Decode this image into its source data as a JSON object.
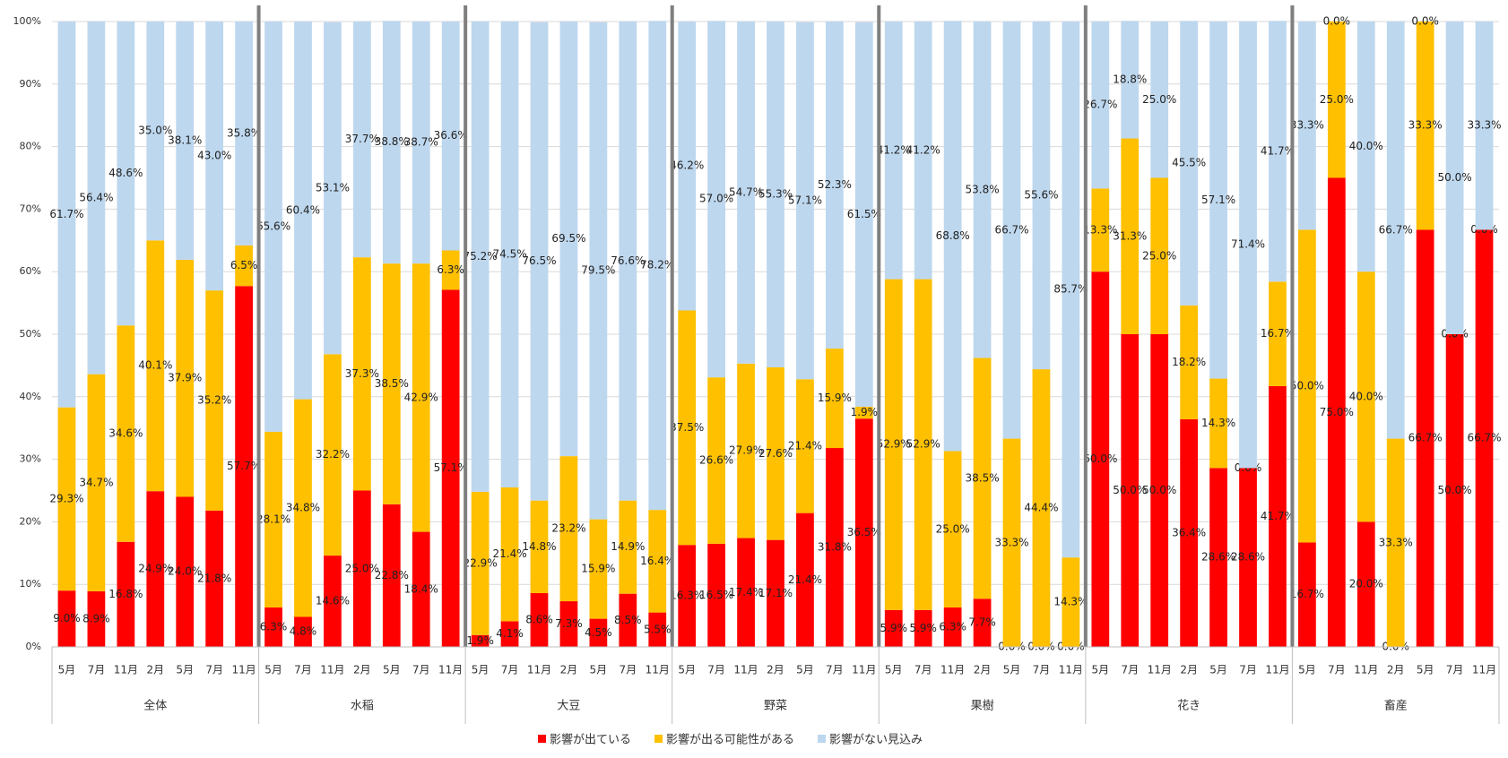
{
  "chart_data": {
    "type": "stacked_bar",
    "groups": [
      "全体",
      "水稲",
      "大豆",
      "野菜",
      "果樹",
      "花き",
      "畜産"
    ],
    "categories": [
      "5月",
      "7月",
      "11月",
      "2月",
      "5月",
      "7月",
      "11月",
      "5月",
      "7月",
      "11月",
      "2月",
      "5月",
      "7月",
      "11月",
      "5月",
      "7月",
      "11月",
      "2月",
      "5月",
      "7月",
      "11月",
      "5月",
      "7月",
      "11月",
      "2月",
      "5月",
      "7月",
      "11月",
      "5月",
      "7月",
      "11月",
      "2月",
      "5月",
      "7月",
      "11月",
      "5月",
      "7月",
      "11月",
      "2月",
      "5月",
      "7月",
      "11月",
      "5月",
      "7月",
      "11月",
      "2月",
      "5月",
      "7月",
      "11月"
    ],
    "ylim": [
      0,
      100
    ],
    "yticks": [
      {
        "value": 0,
        "label": "0%"
      },
      {
        "value": 10,
        "label": "10%"
      },
      {
        "value": 20,
        "label": "20%"
      },
      {
        "value": 30,
        "label": "30%"
      },
      {
        "value": 40,
        "label": "40%"
      },
      {
        "value": 50,
        "label": "50%"
      },
      {
        "value": 60,
        "label": "60%"
      },
      {
        "value": 70,
        "label": "70%"
      },
      {
        "value": 80,
        "label": "80%"
      },
      {
        "value": 90,
        "label": "90%"
      },
      {
        "value": 100,
        "label": "100%"
      }
    ],
    "grid": true,
    "legend": "bottom",
    "series": [
      {
        "name": "影響が出ている",
        "color": "#ff0000",
        "values": [
          9.0,
          8.9,
          16.8,
          24.9,
          24.0,
          21.8,
          57.7,
          6.3,
          4.8,
          14.6,
          25.0,
          22.8,
          18.4,
          57.1,
          1.9,
          4.1,
          8.6,
          7.3,
          4.5,
          8.5,
          5.5,
          16.3,
          16.5,
          17.4,
          17.1,
          21.4,
          31.8,
          36.5,
          5.9,
          5.9,
          6.3,
          7.7,
          0.0,
          0.0,
          0.0,
          60.0,
          50.0,
          50.0,
          36.4,
          28.6,
          28.6,
          41.7,
          16.7,
          75.0,
          20.0,
          0.0,
          66.7,
          50.0,
          66.7
        ],
        "value_labels": [
          "9.0%",
          "8.9%",
          "16.8%",
          "24.9%",
          "24.0%",
          "21.8%",
          "57.7%",
          "6.3%",
          "4.8%",
          "14.6%",
          "25.0%",
          "22.8%",
          "18.4%",
          "57.1%",
          "1.9%",
          "4.1%",
          "8.6%",
          "7.3%",
          "4.5%",
          "8.5%",
          "5.5%",
          "16.3%",
          "16.5%",
          "17.4%",
          "17.1%",
          "21.4%",
          "31.8%",
          "36.5%",
          "5.9%",
          "5.9%",
          "6.3%",
          "7.7%",
          "0.0%",
          "0.0%",
          "0.0%",
          "60.0%",
          "50.0%",
          "50.0%",
          "36.4%",
          "28.6%",
          "28.6%",
          "41.7%",
          "16.7%",
          "75.0%",
          "20.0%",
          "0.0%",
          "66.7%",
          "50.0%",
          "66.7%"
        ]
      },
      {
        "name": "影響が出る可能性がある",
        "color": "#ffc000",
        "values": [
          29.3,
          34.7,
          34.6,
          40.1,
          37.9,
          35.2,
          6.5,
          28.1,
          34.8,
          32.2,
          37.3,
          38.5,
          42.9,
          6.3,
          22.9,
          21.4,
          14.8,
          23.2,
          15.9,
          14.9,
          16.4,
          37.5,
          26.6,
          27.9,
          27.6,
          21.4,
          15.9,
          1.9,
          52.9,
          52.9,
          25.0,
          38.5,
          33.3,
          44.4,
          14.3,
          13.3,
          31.3,
          25.0,
          18.2,
          14.3,
          0.0,
          16.7,
          50.0,
          25.0,
          40.0,
          33.3,
          33.3,
          0.0,
          0.0
        ],
        "value_labels": [
          "29.3%",
          "34.7%",
          "34.6%",
          "40.1%",
          "37.9%",
          "35.2%",
          "6.5%",
          "28.1%",
          "34.8%",
          "32.2%",
          "37.3%",
          "38.5%",
          "42.9%",
          "6.3%",
          "22.9%",
          "21.4%",
          "14.8%",
          "23.2%",
          "15.9%",
          "14.9%",
          "16.4%",
          "37.5%",
          "26.6%",
          "27.9%",
          "27.6%",
          "21.4%",
          "15.9%",
          "1.9%",
          "52.9%",
          "52.9%",
          "25.0%",
          "38.5%",
          "33.3%",
          "44.4%",
          "14.3%",
          "13.3%",
          "31.3%",
          "25.0%",
          "18.2%",
          "14.3%",
          "0.0%",
          "16.7%",
          "50.0%",
          "25.0%",
          "40.0%",
          "33.3%",
          "33.3%",
          "0.0%",
          "0.0%"
        ]
      },
      {
        "name": "影響がない見込み",
        "color": "#bdd7ee",
        "values": [
          61.7,
          56.4,
          48.6,
          35.0,
          38.1,
          43.0,
          35.8,
          65.6,
          60.4,
          53.1,
          37.7,
          38.8,
          38.7,
          36.6,
          75.2,
          74.5,
          76.5,
          69.5,
          79.5,
          76.6,
          78.2,
          46.2,
          57.0,
          54.7,
          55.3,
          57.1,
          52.3,
          61.5,
          41.2,
          41.2,
          68.8,
          53.8,
          66.7,
          55.6,
          85.7,
          26.7,
          18.8,
          25.0,
          45.5,
          57.1,
          71.4,
          41.7,
          33.3,
          0.0,
          40.0,
          66.7,
          0.0,
          50.0,
          33.3
        ],
        "value_labels": [
          "61.7%",
          "56.4%",
          "48.6%",
          "35.0%",
          "38.1%",
          "43.0%",
          "35.8%",
          "65.6%",
          "60.4%",
          "53.1%",
          "37.7%",
          "38.8%",
          "38.7%",
          "36.6%",
          "75.2%",
          "74.5%",
          "76.5%",
          "69.5%",
          "79.5%",
          "76.6%",
          "78.2%",
          "46.2%",
          "57.0%",
          "54.7%",
          "55.3%",
          "57.1%",
          "52.3%",
          "61.5%",
          "41.2%",
          "41.2%",
          "68.8%",
          "53.8%",
          "66.7%",
          "55.6%",
          "85.7%",
          "26.7%",
          "18.8%",
          "25.0%",
          "45.5%",
          "57.1%",
          "71.4%",
          "41.7%",
          "33.3%",
          "0.0%",
          "40.0%",
          "66.7%",
          "0.0%",
          "50.0%",
          "33.3%"
        ]
      }
    ]
  }
}
